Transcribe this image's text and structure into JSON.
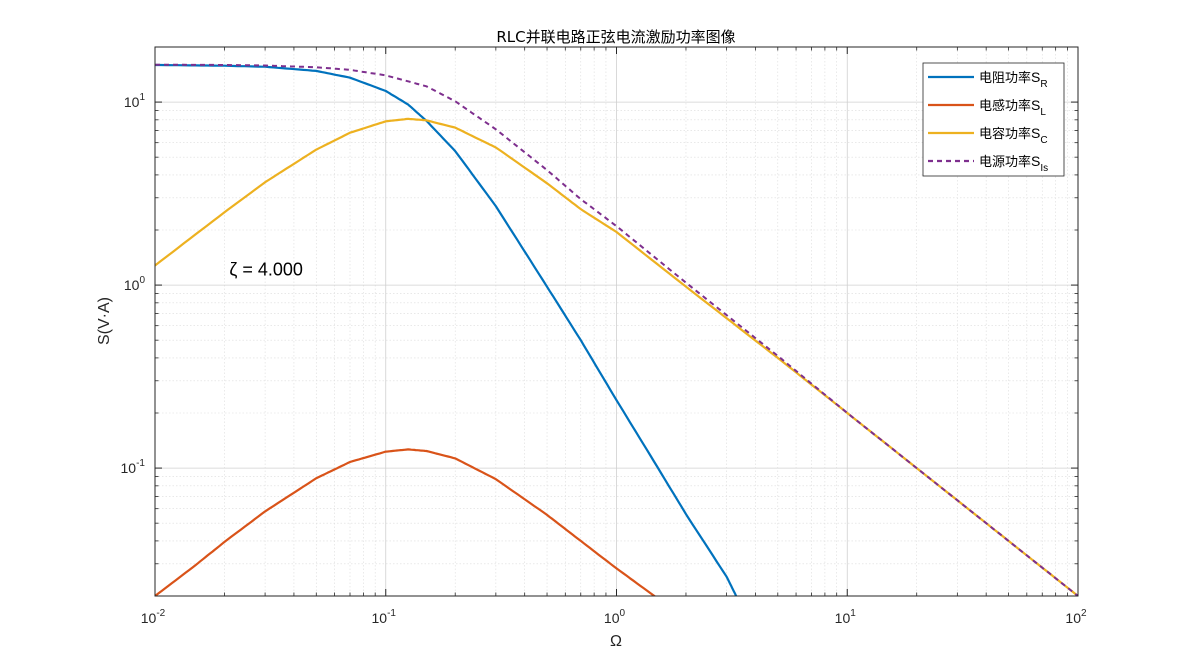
{
  "chart_data": {
    "type": "line",
    "title": "RLC并联电路正弦电流激励功率图像",
    "xlabel": "Ω",
    "ylabel": "S(V·A)",
    "xscale": "log",
    "yscale": "log",
    "xlim": [
      0.01,
      100
    ],
    "ylim": [
      0.02,
      20
    ],
    "grid": true,
    "legend_position": "top-right",
    "x_ticks": [
      {
        "value": 0.01,
        "base": "10",
        "exp": "-2"
      },
      {
        "value": 0.1,
        "base": "10",
        "exp": "-1"
      },
      {
        "value": 1,
        "base": "10",
        "exp": "0"
      },
      {
        "value": 10,
        "base": "10",
        "exp": "1"
      },
      {
        "value": 100,
        "base": "10",
        "exp": "2"
      }
    ],
    "y_ticks": [
      {
        "value": 0.1,
        "base": "10",
        "exp": "-1"
      },
      {
        "value": 1,
        "base": "10",
        "exp": "0"
      },
      {
        "value": 10,
        "base": "10",
        "exp": "1"
      }
    ],
    "annotation": {
      "text": "ζ = 4.000",
      "x": 0.021,
      "y": 1.13
    },
    "series": [
      {
        "name": "电阻功率",
        "sub": "R",
        "color": "#0072BD",
        "dash": false,
        "points": [
          [
            0.01,
            15.95
          ],
          [
            0.02,
            15.8
          ],
          [
            0.03,
            15.6
          ],
          [
            0.05,
            14.8
          ],
          [
            0.07,
            13.6
          ],
          [
            0.1,
            11.5
          ],
          [
            0.125,
            9.7
          ],
          [
            0.15,
            7.9
          ],
          [
            0.2,
            5.4
          ],
          [
            0.3,
            2.7
          ],
          [
            0.5,
            0.98
          ],
          [
            0.7,
            0.5
          ],
          [
            1,
            0.235
          ],
          [
            1.5,
            0.102
          ],
          [
            2,
            0.056
          ],
          [
            3,
            0.0255
          ],
          [
            3.3,
            0.02
          ]
        ]
      },
      {
        "name": "电感功率",
        "sub": "L",
        "color": "#D95319",
        "dash": false,
        "points": [
          [
            0.01,
            0.02
          ],
          [
            0.015,
            0.0295
          ],
          [
            0.02,
            0.0395
          ],
          [
            0.03,
            0.058
          ],
          [
            0.05,
            0.088
          ],
          [
            0.07,
            0.108
          ],
          [
            0.1,
            0.123
          ],
          [
            0.125,
            0.1265
          ],
          [
            0.15,
            0.124
          ],
          [
            0.2,
            0.113
          ],
          [
            0.3,
            0.087
          ],
          [
            0.5,
            0.0555
          ],
          [
            0.7,
            0.04
          ],
          [
            1,
            0.0283
          ],
          [
            1.5,
            0.0195
          ]
        ]
      },
      {
        "name": "电容功率",
        "sub": "C",
        "color": "#EDB120",
        "dash": false,
        "points": [
          [
            0.01,
            1.28
          ],
          [
            0.02,
            2.5
          ],
          [
            0.03,
            3.65
          ],
          [
            0.05,
            5.5
          ],
          [
            0.07,
            6.8
          ],
          [
            0.1,
            7.85
          ],
          [
            0.125,
            8.1
          ],
          [
            0.15,
            7.95
          ],
          [
            0.2,
            7.25
          ],
          [
            0.3,
            5.65
          ],
          [
            0.5,
            3.6
          ],
          [
            0.7,
            2.6
          ],
          [
            1,
            1.95
          ],
          [
            2,
            0.98
          ],
          [
            5,
            0.4
          ],
          [
            10,
            0.2
          ],
          [
            20,
            0.1
          ],
          [
            50,
            0.04
          ],
          [
            100,
            0.02
          ]
        ]
      },
      {
        "name": "电源功率",
        "sub": "Is",
        "color": "#7E2F8E",
        "dash": true,
        "points": [
          [
            0.01,
            16
          ],
          [
            0.02,
            15.95
          ],
          [
            0.03,
            15.85
          ],
          [
            0.05,
            15.5
          ],
          [
            0.07,
            15.0
          ],
          [
            0.1,
            14.0
          ],
          [
            0.15,
            12.2
          ],
          [
            0.2,
            10.1
          ],
          [
            0.3,
            7.1
          ],
          [
            0.5,
            4.25
          ],
          [
            0.7,
            2.95
          ],
          [
            1,
            2.1
          ],
          [
            2,
            1.03
          ],
          [
            5,
            0.41
          ],
          [
            10,
            0.2
          ],
          [
            20,
            0.1
          ],
          [
            50,
            0.04
          ],
          [
            100,
            0.02
          ]
        ]
      }
    ]
  }
}
